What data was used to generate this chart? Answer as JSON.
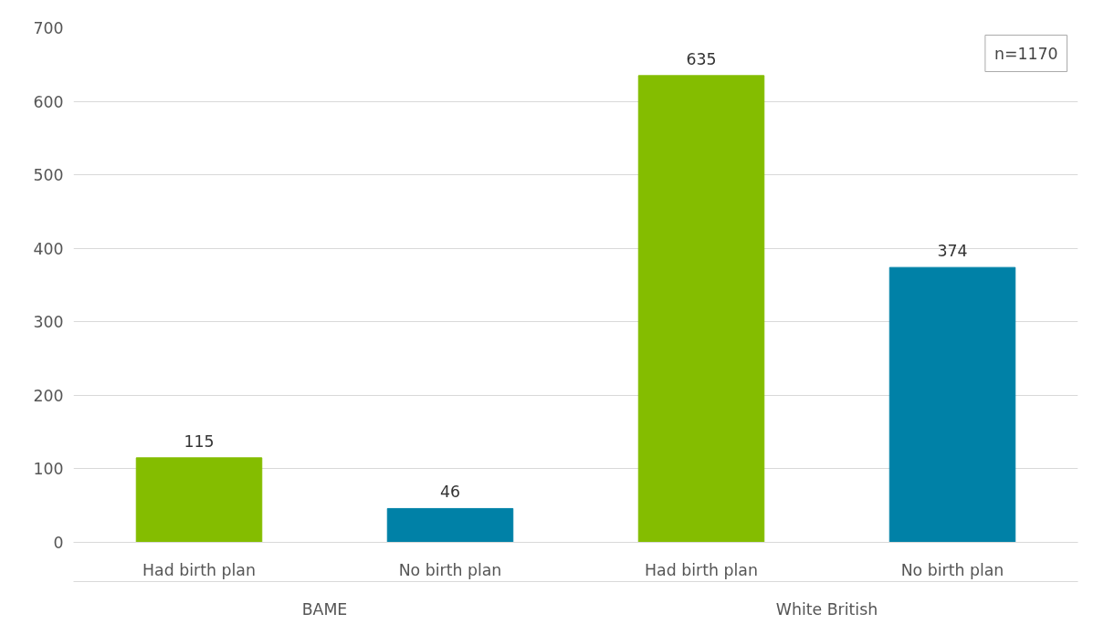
{
  "chart_data": {
    "type": "bar",
    "categories": [
      "BAME",
      "White British"
    ],
    "series": [
      {
        "name": "Had birth plan",
        "color": "#84bd00",
        "values": [
          115,
          635
        ]
      },
      {
        "name": "No birth plan",
        "color": "#0081a7",
        "values": [
          46,
          374
        ]
      }
    ],
    "ylim": [
      0,
      700
    ],
    "yticks": [
      0,
      100,
      200,
      300,
      400,
      500,
      600,
      700
    ],
    "grid": "y",
    "data_labels": true,
    "annotations": [
      "n=1170"
    ]
  }
}
